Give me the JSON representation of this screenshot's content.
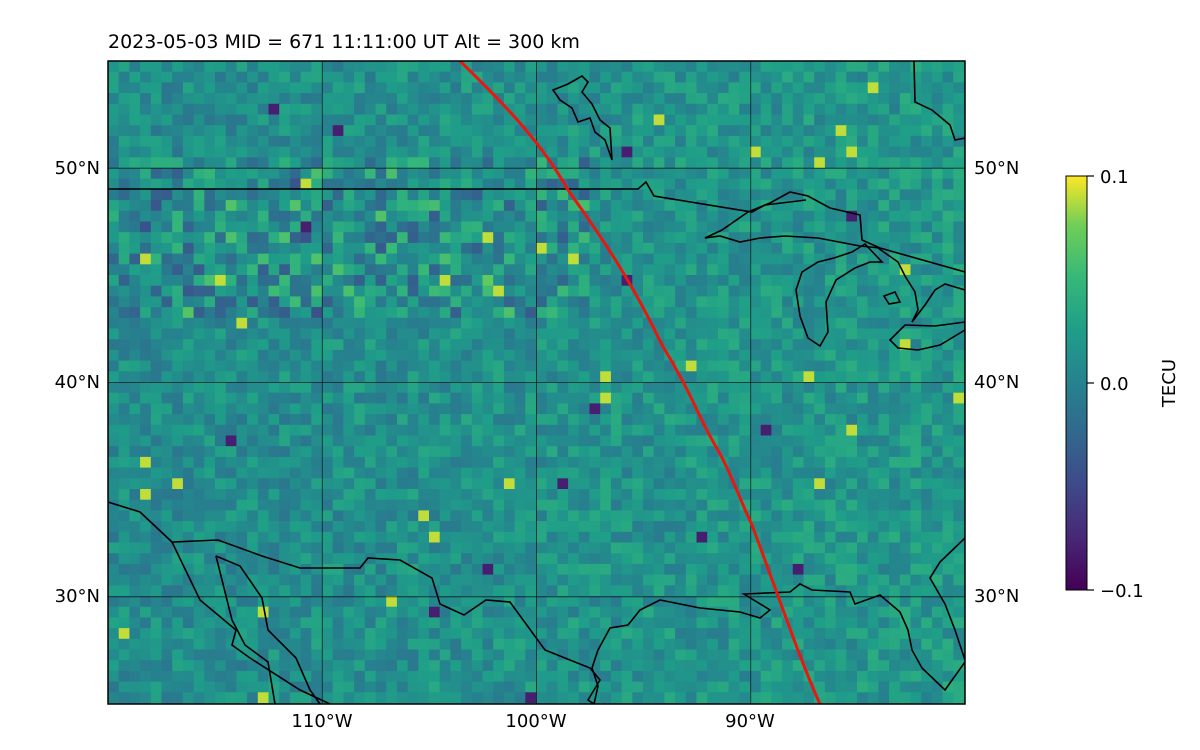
{
  "figure": {
    "title": "2023-05-03  MID = 671    11:11:00  UT  Alt = 300 km"
  },
  "map": {
    "lon_ticks": [
      {
        "value": -110,
        "label": "110°W"
      },
      {
        "value": -100,
        "label": "100°W"
      },
      {
        "value": -90,
        "label": "90°W"
      }
    ],
    "lat_ticks": [
      {
        "value": 50,
        "label": "50°N"
      },
      {
        "value": 40,
        "label": "40°N"
      },
      {
        "value": 30,
        "label": "30°N"
      }
    ],
    "lon_range": [
      -120,
      -80
    ],
    "lat_range": [
      25,
      55
    ],
    "gridlines": true,
    "terminator_color": "#e8180f",
    "coastline_color": "#000000"
  },
  "colorbar": {
    "label": "TECU",
    "ticks": [
      "0.1",
      "0.0",
      "−0.1"
    ],
    "range": [
      -0.1,
      0.1
    ],
    "colormap": "viridis"
  }
}
